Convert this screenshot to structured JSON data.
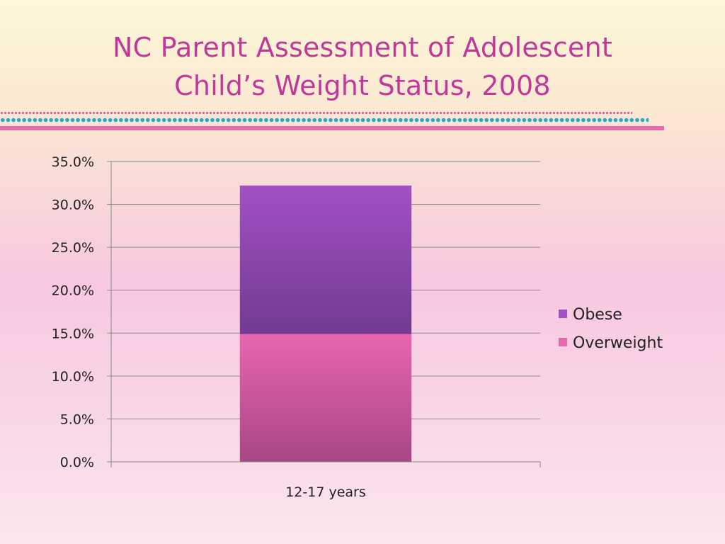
{
  "slide": {
    "title_line1": "NC Parent Assessment of Adolescent",
    "title_line2": "Child’s Weight Status, 2008"
  },
  "colors": {
    "title": "#c0399a",
    "rule": "#e86aa9",
    "dots_pink": "#d65aa6",
    "dots_blue": "#2aa6c8",
    "overweight_top": "#e865b0",
    "overweight_bottom": "#a84684",
    "obese_top": "#a051c4",
    "obese_bottom": "#733a90"
  },
  "chart_data": {
    "type": "bar",
    "stacked": true,
    "categories": [
      "12-17 years"
    ],
    "series": [
      {
        "name": "Overweight",
        "values": [
          14.9
        ]
      },
      {
        "name": "Obese",
        "values": [
          17.3
        ]
      }
    ],
    "legend_order": [
      "Obese",
      "Overweight"
    ],
    "legend_position": "right",
    "ylim": [
      0,
      35
    ],
    "y_ticks": [
      0,
      5,
      10,
      15,
      20,
      25,
      30,
      35
    ],
    "y_tick_labels": [
      "0.0%",
      "5.0%",
      "10.0%",
      "15.0%",
      "20.0%",
      "25.0%",
      "30.0%",
      "35.0%"
    ],
    "grid": true,
    "title": "",
    "xlabel": "",
    "ylabel": ""
  }
}
